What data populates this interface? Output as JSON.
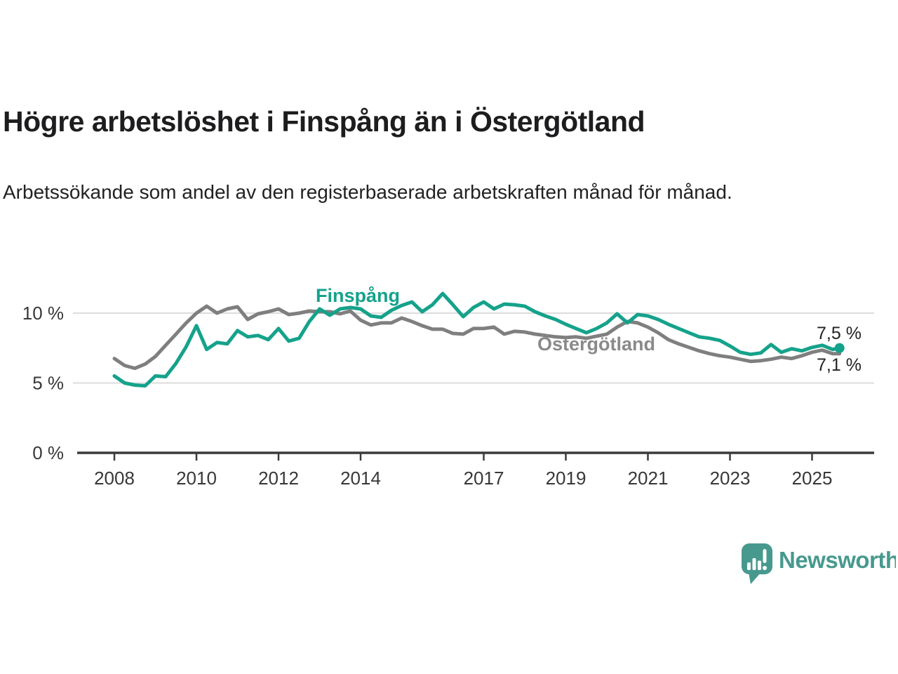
{
  "header": {
    "title": "Högre arbetslöshet i Finspång än i Östergötland",
    "subtitle": "Arbetssökande som andel av den registerbaserade arbetskraften månad för månad."
  },
  "chart_data": {
    "type": "line",
    "unit": "percent of registered labour force",
    "grid": "horizontal",
    "ylim": [
      0,
      12
    ],
    "xlim": [
      2007.1,
      2026.5
    ],
    "x_years": [
      2008,
      2008.25,
      2008.5,
      2008.75,
      2009,
      2009.25,
      2009.5,
      2009.75,
      2010,
      2010.25,
      2010.5,
      2010.75,
      2011,
      2011.25,
      2011.5,
      2011.75,
      2012,
      2012.25,
      2012.5,
      2012.75,
      2013,
      2013.25,
      2013.5,
      2013.75,
      2014,
      2014.25,
      2014.5,
      2014.75,
      2015,
      2015.25,
      2015.5,
      2015.75,
      2016,
      2016.25,
      2016.5,
      2016.75,
      2017,
      2017.25,
      2017.5,
      2017.75,
      2018,
      2018.25,
      2018.5,
      2018.75,
      2019,
      2019.25,
      2019.5,
      2019.75,
      2020,
      2020.25,
      2020.5,
      2020.75,
      2021,
      2021.25,
      2021.5,
      2021.75,
      2022,
      2022.25,
      2022.5,
      2022.75,
      2023,
      2023.25,
      2023.5,
      2023.75,
      2024,
      2024.25,
      2024.5,
      2024.75,
      2025,
      2025.25,
      2025.5,
      2025.67
    ],
    "series": [
      {
        "name": "Finspång",
        "color": "#15a28b",
        "end_label": "7,5 %",
        "values": [
          5.5,
          5.0,
          4.85,
          4.8,
          5.5,
          5.45,
          6.4,
          7.6,
          9.1,
          7.4,
          7.9,
          7.8,
          8.75,
          8.3,
          8.4,
          8.1,
          8.9,
          8.0,
          8.2,
          9.4,
          10.3,
          9.85,
          10.3,
          10.4,
          10.3,
          9.8,
          9.7,
          10.2,
          10.55,
          10.8,
          10.1,
          10.6,
          11.4,
          10.6,
          9.75,
          10.4,
          10.8,
          10.3,
          10.65,
          10.6,
          10.5,
          10.1,
          9.8,
          9.55,
          9.2,
          8.9,
          8.6,
          8.9,
          9.3,
          9.95,
          9.3,
          9.9,
          9.8,
          9.55,
          9.2,
          8.9,
          8.6,
          8.3,
          8.2,
          8.05,
          7.65,
          7.2,
          7.05,
          7.15,
          7.75,
          7.2,
          7.45,
          7.3,
          7.55,
          7.7,
          7.4,
          7.5
        ]
      },
      {
        "name": "Östergötland",
        "color": "#7f7f7f",
        "label_color": "#8a8a8a",
        "end_label": "7,1 %",
        "values": [
          6.75,
          6.25,
          6.05,
          6.35,
          6.9,
          7.7,
          8.5,
          9.3,
          10.0,
          10.5,
          10.0,
          10.3,
          10.45,
          9.55,
          9.95,
          10.1,
          10.3,
          9.9,
          10.0,
          10.15,
          10.1,
          10.1,
          9.95,
          10.15,
          9.5,
          9.15,
          9.3,
          9.3,
          9.65,
          9.4,
          9.1,
          8.85,
          8.85,
          8.55,
          8.5,
          8.9,
          8.9,
          9.0,
          8.5,
          8.7,
          8.65,
          8.5,
          8.4,
          8.3,
          8.25,
          8.3,
          8.2,
          8.35,
          8.5,
          9.0,
          9.4,
          9.3,
          9.0,
          8.6,
          8.1,
          7.8,
          7.55,
          7.3,
          7.1,
          6.95,
          6.85,
          6.7,
          6.55,
          6.6,
          6.7,
          6.85,
          6.75,
          6.95,
          7.2,
          7.35,
          7.1,
          7.1
        ]
      }
    ],
    "y_ticks": [
      {
        "value": 0,
        "label": "0 %"
      },
      {
        "value": 5,
        "label": "5 %"
      },
      {
        "value": 10,
        "label": "10 %"
      }
    ],
    "x_ticks": [
      {
        "year": 2008,
        "label": "2008"
      },
      {
        "year": 2010,
        "label": "2010"
      },
      {
        "year": 2012,
        "label": "2012"
      },
      {
        "year": 2014,
        "label": "2014"
      },
      {
        "year": 2017,
        "label": "2017"
      },
      {
        "year": 2019,
        "label": "2019"
      },
      {
        "year": 2021,
        "label": "2021"
      },
      {
        "year": 2023,
        "label": "2023"
      },
      {
        "year": 2025,
        "label": "2025"
      }
    ]
  },
  "footer": {
    "brand": "Newsworthy",
    "logo_color": "#47998e"
  }
}
